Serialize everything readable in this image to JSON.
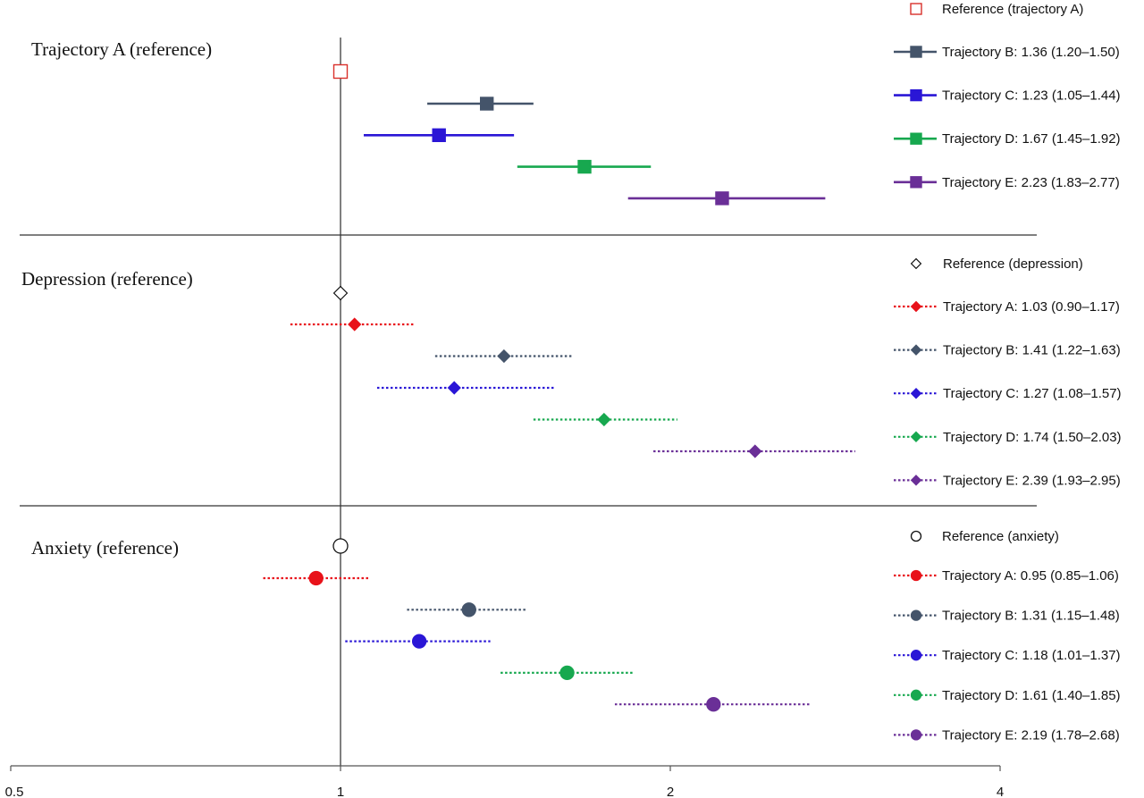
{
  "chart_data": {
    "type": "forest",
    "x_scale": "log",
    "x_ticks": [
      0.5,
      1,
      2,
      4
    ],
    "x_tick_labels": [
      "0.5",
      "1",
      "2",
      "4"
    ],
    "xlim": [
      0.5,
      4
    ],
    "reference_line": 1,
    "colors": {
      "reference_red": "#d9302b",
      "trajectory_A": "#e8121a",
      "trajectory_B": "#44546a",
      "trajectory_C": "#2a16d6",
      "trajectory_D": "#17a84f",
      "trajectory_E": "#6a2f97",
      "axis": "#7f7f7f",
      "divider": "#333333"
    },
    "panels": [
      {
        "title": "Trajectory A (reference)",
        "marker": "square",
        "line_style": "solid",
        "reference": {
          "label": "Reference (trajectory A)",
          "value": 1,
          "color": "#d9302b"
        },
        "series": [
          {
            "label": "Trajectory B: 1.36 (1.20–1.50)",
            "estimate": 1.36,
            "low": 1.2,
            "high": 1.5,
            "color": "#44546a"
          },
          {
            "label": "Trajectory C: 1.23 (1.05–1.44)",
            "estimate": 1.23,
            "low": 1.05,
            "high": 1.44,
            "color": "#2a16d6"
          },
          {
            "label": "Trajectory D: 1.67 (1.45–1.92)",
            "estimate": 1.67,
            "low": 1.45,
            "high": 1.92,
            "color": "#17a84f"
          },
          {
            "label": "Trajectory E: 2.23 (1.83–2.77)",
            "estimate": 2.23,
            "low": 1.83,
            "high": 2.77,
            "color": "#6a2f97"
          }
        ]
      },
      {
        "title": "Depression (reference)",
        "marker": "diamond",
        "line_style": "dotted",
        "reference": {
          "label": "Reference (depression)",
          "value": 1,
          "color": "#111111"
        },
        "series": [
          {
            "label": "Trajectory A: 1.03 (0.90–1.17)",
            "estimate": 1.03,
            "low": 0.9,
            "high": 1.17,
            "color": "#e8121a"
          },
          {
            "label": "Trajectory B: 1.41 (1.22–1.63)",
            "estimate": 1.41,
            "low": 1.22,
            "high": 1.63,
            "color": "#44546a"
          },
          {
            "label": "Trajectory C: 1.27 (1.08–1.57)",
            "estimate": 1.27,
            "low": 1.08,
            "high": 1.57,
            "color": "#2a16d6"
          },
          {
            "label": "Trajectory D: 1.74 (1.50–2.03)",
            "estimate": 1.74,
            "low": 1.5,
            "high": 2.03,
            "color": "#17a84f"
          },
          {
            "label": "Trajectory E: 2.39 (1.93–2.95)",
            "estimate": 2.39,
            "low": 1.93,
            "high": 2.95,
            "color": "#6a2f97"
          }
        ]
      },
      {
        "title": "Anxiety (reference)",
        "marker": "circle",
        "line_style": "dotted",
        "reference": {
          "label": "Reference (anxiety)",
          "value": 1,
          "color": "#111111"
        },
        "series": [
          {
            "label": "Trajectory A: 0.95 (0.85–1.06)",
            "estimate": 0.95,
            "low": 0.85,
            "high": 1.06,
            "color": "#e8121a"
          },
          {
            "label": "Trajectory B: 1.31 (1.15–1.48)",
            "estimate": 1.31,
            "low": 1.15,
            "high": 1.48,
            "color": "#44546a"
          },
          {
            "label": "Trajectory C: 1.18 (1.01–1.37)",
            "estimate": 1.18,
            "low": 1.01,
            "high": 1.37,
            "color": "#2a16d6"
          },
          {
            "label": "Trajectory D: 1.61 (1.40–1.85)",
            "estimate": 1.61,
            "low": 1.4,
            "high": 1.85,
            "color": "#17a84f"
          },
          {
            "label": "Trajectory E: 2.19 (1.78–2.68)",
            "estimate": 2.19,
            "low": 1.78,
            "high": 2.68,
            "color": "#6a2f97"
          }
        ]
      }
    ]
  }
}
